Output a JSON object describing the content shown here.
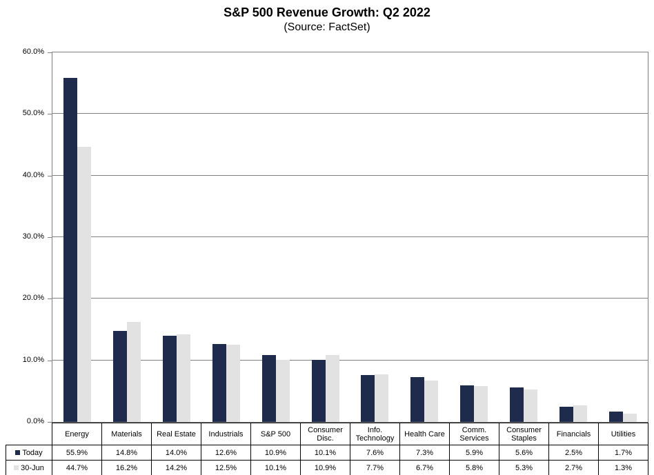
{
  "page": {
    "title": "S&P 500 Revenue Growth: Q2 2022",
    "subtitle": "(Source: FactSet)"
  },
  "colors": {
    "series_today": "#1F2B4D",
    "series_jun30": "#E2E2E2",
    "gridline": "#808080",
    "plot_border": "#808080",
    "table_border": "#000000",
    "text": "#000000",
    "background": "#FFFFFF"
  },
  "chart_data": {
    "type": "bar",
    "title": "S&P 500 Revenue Growth: Q2 2022",
    "subtitle": "(Source: FactSet)",
    "categories": [
      "Energy",
      "Materials",
      "Real Estate",
      "Industrials",
      "S&P 500",
      "Consumer Disc.",
      "Info. Technology",
      "Health Care",
      "Comm. Services",
      "Consumer Staples",
      "Financials",
      "Utilities"
    ],
    "series": [
      {
        "name": "Today",
        "color": "#1F2B4D",
        "values": [
          55.9,
          14.8,
          14.0,
          12.6,
          10.9,
          10.1,
          7.6,
          7.3,
          5.9,
          5.6,
          2.5,
          1.7
        ]
      },
      {
        "name": "30-Jun",
        "color": "#E2E2E2",
        "values": [
          44.7,
          16.2,
          14.2,
          12.5,
          10.1,
          10.9,
          7.7,
          6.7,
          5.8,
          5.3,
          2.7,
          1.3
        ]
      }
    ],
    "xlabel": "",
    "ylabel": "",
    "ylim": [
      0,
      60
    ],
    "ytick_step": 10,
    "ytick_labels": [
      "0.0%",
      "10.0%",
      "20.0%",
      "30.0%",
      "40.0%",
      "50.0%",
      "60.0%"
    ],
    "grid": true,
    "legend_position": "data-table-left",
    "data_table": {
      "rows": [
        {
          "label": "Today",
          "values": [
            "55.9%",
            "14.8%",
            "14.0%",
            "12.6%",
            "10.9%",
            "10.1%",
            "7.6%",
            "7.3%",
            "5.9%",
            "5.6%",
            "2.5%",
            "1.7%"
          ]
        },
        {
          "label": "30-Jun",
          "values": [
            "44.7%",
            "16.2%",
            "14.2%",
            "12.5%",
            "10.1%",
            "10.9%",
            "7.7%",
            "6.7%",
            "5.8%",
            "5.3%",
            "2.7%",
            "1.3%"
          ]
        }
      ]
    }
  }
}
